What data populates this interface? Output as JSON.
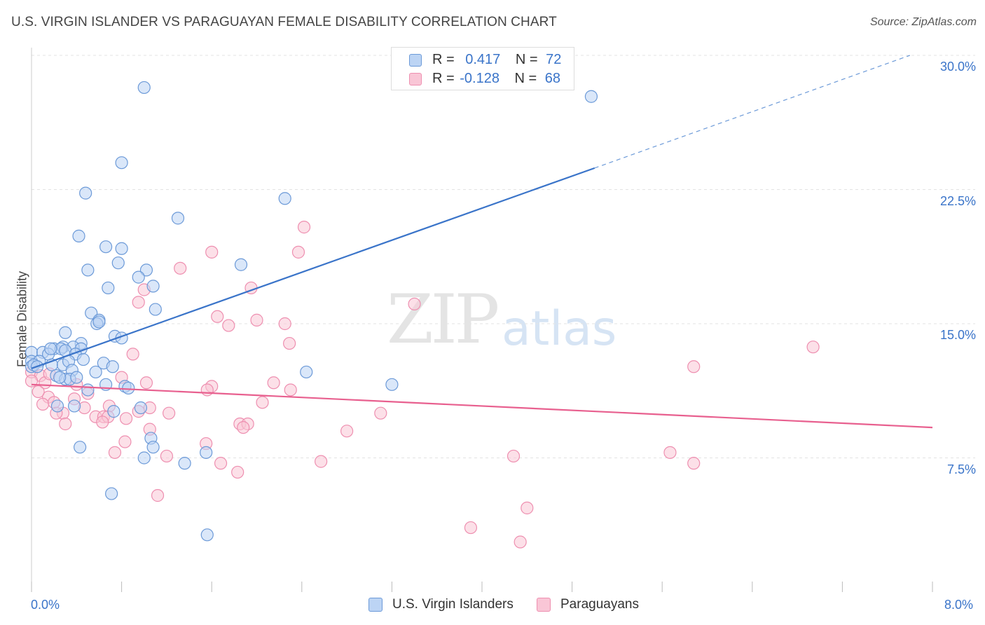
{
  "header": {
    "title": "U.S. VIRGIN ISLANDER VS PARAGUAYAN FEMALE DISABILITY CORRELATION CHART",
    "source": "Source: ZipAtlas.com"
  },
  "watermark": {
    "zip": "ZIP",
    "atlas": "atlas"
  },
  "legend": {
    "rows": [
      {
        "r_label": "R =",
        "r_value": "0.417",
        "n_label": "N =",
        "n_value": "72"
      },
      {
        "r_label": "R =",
        "r_value": "-0.128",
        "n_label": "N =",
        "n_value": "68"
      }
    ]
  },
  "bottom_legend": {
    "series1": "U.S. Virgin Islanders",
    "series2": "Paraguayans"
  },
  "axes": {
    "x_min_label": "0.0%",
    "x_max_label": "8.0%"
  },
  "colors": {
    "blue": "#3a74c9",
    "blue_fill": "#bcd4f4",
    "blue_stroke": "#6c9ad8",
    "pink": "#e8608f",
    "pink_fill": "#f9c6d6",
    "pink_stroke": "#ee8fb0",
    "grid": "#e3e3e3"
  },
  "chart_data": {
    "type": "scatter",
    "title": "U.S. VIRGIN ISLANDER VS PARAGUAYAN FEMALE DISABILITY CORRELATION CHART",
    "xlabel": "",
    "ylabel": "Female Disability",
    "xlim": [
      0,
      8
    ],
    "ylim": [
      0,
      31.5
    ],
    "x_unit": "%",
    "y_unit": "%",
    "y_ticks": [
      7.5,
      15.0,
      22.5,
      30.0
    ],
    "y_tick_labels": [
      "7.5%",
      "15.0%",
      "22.5%",
      "30.0%"
    ],
    "x_tick_labels": [
      "0.0%",
      "8.0%"
    ],
    "grid": true,
    "legend_position": "top-center",
    "series": [
      {
        "name": "U.S. Virgin Islanders",
        "r": 0.417,
        "n": 72,
        "trend": {
          "x0": 0.0,
          "y0": 12.5,
          "x1": 5.0,
          "y1": 23.7,
          "dash_to_x": 7.8,
          "dash_to_y": 30.0
        },
        "points": [
          [
            1.0,
            28.2
          ],
          [
            4.97,
            27.7
          ],
          [
            0.8,
            24.0
          ],
          [
            0.48,
            22.3
          ],
          [
            2.25,
            22.0
          ],
          [
            1.3,
            20.9
          ],
          [
            0.42,
            19.9
          ],
          [
            0.66,
            19.3
          ],
          [
            0.8,
            19.2
          ],
          [
            1.86,
            18.3
          ],
          [
            0.77,
            18.4
          ],
          [
            0.5,
            18.0
          ],
          [
            1.02,
            18.0
          ],
          [
            0.95,
            17.6
          ],
          [
            0.68,
            17.0
          ],
          [
            1.08,
            17.1
          ],
          [
            1.1,
            15.8
          ],
          [
            0.53,
            15.6
          ],
          [
            0.6,
            15.2
          ],
          [
            0.58,
            15.0
          ],
          [
            0.3,
            14.5
          ],
          [
            0.74,
            14.3
          ],
          [
            0.44,
            13.9
          ],
          [
            0.2,
            13.6
          ],
          [
            0.28,
            13.7
          ],
          [
            0.37,
            13.7
          ],
          [
            0.0,
            13.4
          ],
          [
            0.1,
            13.4
          ],
          [
            0.26,
            13.6
          ],
          [
            0.3,
            13.5
          ],
          [
            0.44,
            13.6
          ],
          [
            0.15,
            13.3
          ],
          [
            0.0,
            12.9
          ],
          [
            0.07,
            12.9
          ],
          [
            0.39,
            13.3
          ],
          [
            0.46,
            13.0
          ],
          [
            0.64,
            12.8
          ],
          [
            0.72,
            12.6
          ],
          [
            0.0,
            12.6
          ],
          [
            0.02,
            12.7
          ],
          [
            0.05,
            12.6
          ],
          [
            0.18,
            12.7
          ],
          [
            0.28,
            12.7
          ],
          [
            0.33,
            12.9
          ],
          [
            0.36,
            12.4
          ],
          [
            0.57,
            12.3
          ],
          [
            0.22,
            12.1
          ],
          [
            0.3,
            11.9
          ],
          [
            0.34,
            11.9
          ],
          [
            0.4,
            12.0
          ],
          [
            0.66,
            11.6
          ],
          [
            0.83,
            11.5
          ],
          [
            0.86,
            11.4
          ],
          [
            0.5,
            11.3
          ],
          [
            0.23,
            10.4
          ],
          [
            0.73,
            10.1
          ],
          [
            0.38,
            10.4
          ],
          [
            1.06,
            8.6
          ],
          [
            1.08,
            8.1
          ],
          [
            0.43,
            8.1
          ],
          [
            1.0,
            7.5
          ],
          [
            1.36,
            7.2
          ],
          [
            1.55,
            7.8
          ],
          [
            0.71,
            5.5
          ],
          [
            1.56,
            3.2
          ],
          [
            2.44,
            12.3
          ],
          [
            3.2,
            11.6
          ],
          [
            0.97,
            10.3
          ],
          [
            0.17,
            13.6
          ],
          [
            0.8,
            14.2
          ],
          [
            0.6,
            15.1
          ],
          [
            0.25,
            12.0
          ]
        ]
      },
      {
        "name": "Paraguayans",
        "r": -0.128,
        "n": 68,
        "trend": {
          "x0": 0.0,
          "y0": 11.6,
          "x1": 8.0,
          "y1": 9.2
        },
        "points": [
          [
            2.42,
            20.4
          ],
          [
            2.37,
            19.0
          ],
          [
            1.6,
            19.0
          ],
          [
            1.32,
            18.1
          ],
          [
            1.95,
            17.0
          ],
          [
            1.0,
            16.9
          ],
          [
            0.95,
            16.2
          ],
          [
            3.4,
            16.1
          ],
          [
            1.65,
            15.4
          ],
          [
            2.0,
            15.2
          ],
          [
            2.25,
            15.0
          ],
          [
            1.75,
            14.9
          ],
          [
            2.29,
            13.9
          ],
          [
            6.94,
            13.7
          ],
          [
            0.9,
            13.3
          ],
          [
            5.88,
            12.6
          ],
          [
            0.0,
            12.3
          ],
          [
            0.08,
            12.1
          ],
          [
            0.8,
            12.0
          ],
          [
            1.02,
            11.7
          ],
          [
            2.15,
            11.7
          ],
          [
            0.0,
            11.8
          ],
          [
            0.12,
            11.7
          ],
          [
            0.4,
            11.6
          ],
          [
            1.6,
            11.5
          ],
          [
            1.56,
            11.3
          ],
          [
            2.3,
            11.3
          ],
          [
            0.5,
            11.1
          ],
          [
            0.15,
            10.9
          ],
          [
            0.38,
            10.8
          ],
          [
            0.1,
            10.5
          ],
          [
            0.2,
            10.6
          ],
          [
            2.05,
            10.6
          ],
          [
            0.69,
            10.4
          ],
          [
            1.05,
            10.3
          ],
          [
            0.47,
            10.3
          ],
          [
            0.28,
            10.0
          ],
          [
            0.22,
            10.0
          ],
          [
            0.57,
            9.8
          ],
          [
            0.64,
            9.8
          ],
          [
            0.68,
            9.8
          ],
          [
            0.84,
            9.7
          ],
          [
            1.22,
            10.0
          ],
          [
            3.1,
            10.0
          ],
          [
            1.85,
            9.4
          ],
          [
            1.92,
            9.4
          ],
          [
            1.88,
            9.2
          ],
          [
            0.3,
            9.4
          ],
          [
            0.63,
            9.5
          ],
          [
            1.05,
            9.1
          ],
          [
            2.8,
            9.0
          ],
          [
            0.83,
            8.4
          ],
          [
            1.55,
            8.3
          ],
          [
            0.74,
            7.8
          ],
          [
            1.2,
            7.6
          ],
          [
            4.28,
            7.6
          ],
          [
            5.67,
            7.8
          ],
          [
            2.57,
            7.3
          ],
          [
            1.68,
            7.2
          ],
          [
            5.88,
            7.2
          ],
          [
            1.83,
            6.7
          ],
          [
            1.12,
            5.4
          ],
          [
            4.4,
            4.7
          ],
          [
            3.9,
            3.6
          ],
          [
            4.34,
            2.8
          ],
          [
            0.95,
            10.1
          ],
          [
            0.06,
            11.2
          ],
          [
            0.16,
            12.2
          ]
        ]
      }
    ]
  }
}
